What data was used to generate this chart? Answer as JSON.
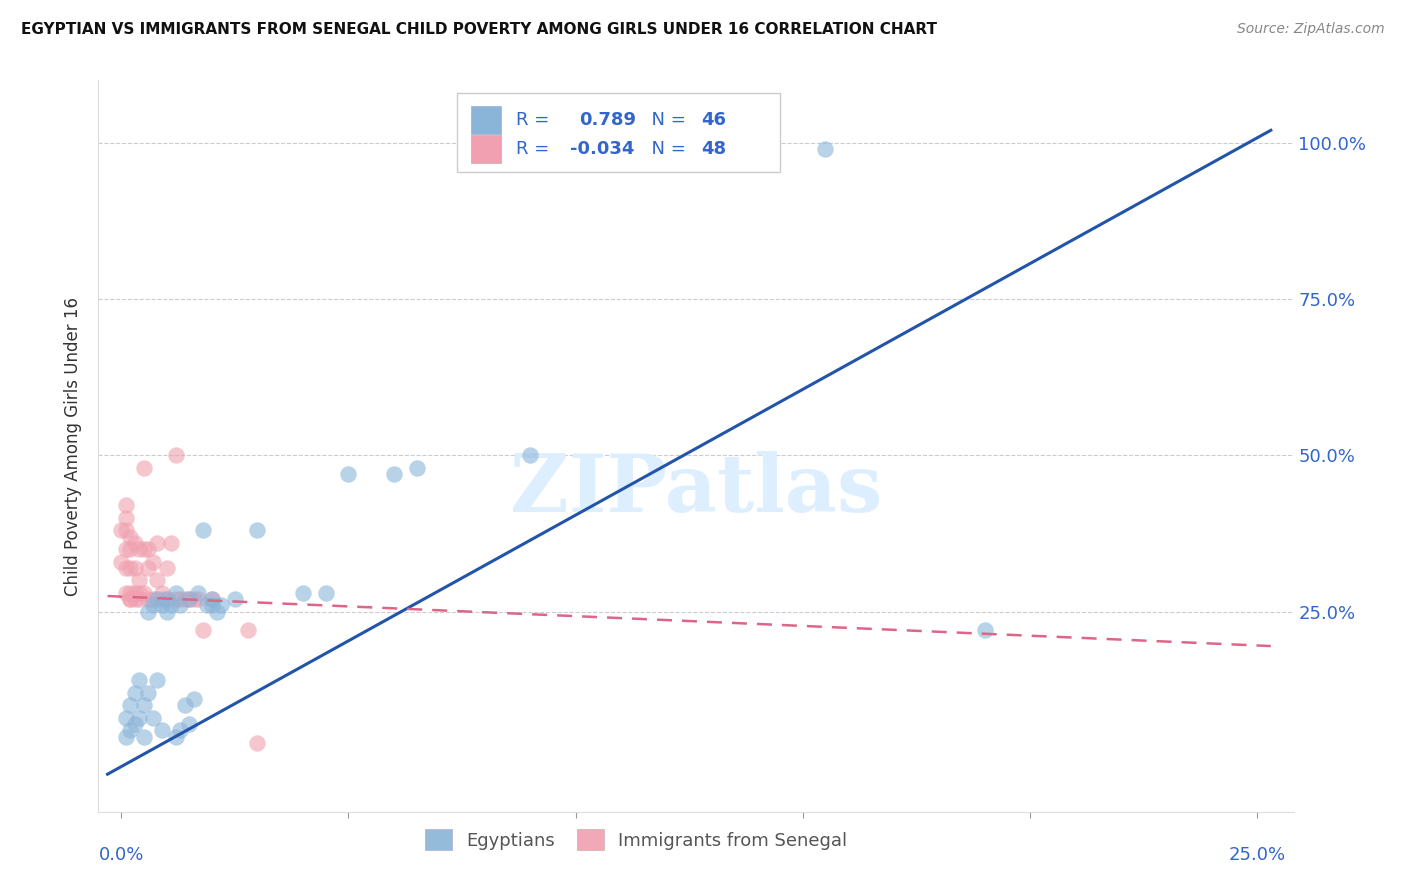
{
  "title": "EGYPTIAN VS IMMIGRANTS FROM SENEGAL CHILD POVERTY AMONG GIRLS UNDER 16 CORRELATION CHART",
  "source": "Source: ZipAtlas.com",
  "ylabel": "Child Poverty Among Girls Under 16",
  "yticklabels": [
    "100.0%",
    "75.0%",
    "50.0%",
    "25.0%"
  ],
  "ytick_positions": [
    1.0,
    0.75,
    0.5,
    0.25
  ],
  "legend_r_blue": "R =  0.789",
  "legend_n_blue": "N = 46",
  "legend_r_pink": "R = -0.034",
  "legend_n_pink": "N = 48",
  "blue_scatter": [
    [
      0.001,
      0.05
    ],
    [
      0.001,
      0.08
    ],
    [
      0.002,
      0.06
    ],
    [
      0.002,
      0.1
    ],
    [
      0.003,
      0.07
    ],
    [
      0.003,
      0.12
    ],
    [
      0.004,
      0.08
    ],
    [
      0.004,
      0.14
    ],
    [
      0.005,
      0.1
    ],
    [
      0.005,
      0.05
    ],
    [
      0.006,
      0.12
    ],
    [
      0.006,
      0.25
    ],
    [
      0.007,
      0.08
    ],
    [
      0.007,
      0.26
    ],
    [
      0.008,
      0.14
    ],
    [
      0.008,
      0.27
    ],
    [
      0.009,
      0.06
    ],
    [
      0.009,
      0.26
    ],
    [
      0.01,
      0.25
    ],
    [
      0.01,
      0.27
    ],
    [
      0.011,
      0.26
    ],
    [
      0.012,
      0.05
    ],
    [
      0.012,
      0.28
    ],
    [
      0.013,
      0.06
    ],
    [
      0.013,
      0.26
    ],
    [
      0.014,
      0.1
    ],
    [
      0.015,
      0.07
    ],
    [
      0.015,
      0.27
    ],
    [
      0.016,
      0.11
    ],
    [
      0.017,
      0.28
    ],
    [
      0.018,
      0.38
    ],
    [
      0.019,
      0.26
    ],
    [
      0.02,
      0.26
    ],
    [
      0.02,
      0.27
    ],
    [
      0.021,
      0.25
    ],
    [
      0.022,
      0.26
    ],
    [
      0.025,
      0.27
    ],
    [
      0.03,
      0.38
    ],
    [
      0.04,
      0.28
    ],
    [
      0.045,
      0.28
    ],
    [
      0.05,
      0.47
    ],
    [
      0.06,
      0.47
    ],
    [
      0.065,
      0.48
    ],
    [
      0.09,
      0.5
    ],
    [
      0.155,
      0.99
    ],
    [
      0.19,
      0.22
    ]
  ],
  "pink_scatter": [
    [
      0.0,
      0.38
    ],
    [
      0.0,
      0.33
    ],
    [
      0.001,
      0.28
    ],
    [
      0.001,
      0.32
    ],
    [
      0.001,
      0.35
    ],
    [
      0.001,
      0.38
    ],
    [
      0.001,
      0.4
    ],
    [
      0.001,
      0.42
    ],
    [
      0.002,
      0.27
    ],
    [
      0.002,
      0.32
    ],
    [
      0.002,
      0.35
    ],
    [
      0.002,
      0.37
    ],
    [
      0.002,
      0.27
    ],
    [
      0.002,
      0.28
    ],
    [
      0.003,
      0.28
    ],
    [
      0.003,
      0.32
    ],
    [
      0.003,
      0.36
    ],
    [
      0.003,
      0.27
    ],
    [
      0.004,
      0.27
    ],
    [
      0.004,
      0.3
    ],
    [
      0.004,
      0.35
    ],
    [
      0.004,
      0.28
    ],
    [
      0.005,
      0.28
    ],
    [
      0.005,
      0.35
    ],
    [
      0.005,
      0.48
    ],
    [
      0.006,
      0.27
    ],
    [
      0.006,
      0.32
    ],
    [
      0.006,
      0.35
    ],
    [
      0.007,
      0.27
    ],
    [
      0.007,
      0.33
    ],
    [
      0.008,
      0.3
    ],
    [
      0.008,
      0.36
    ],
    [
      0.009,
      0.28
    ],
    [
      0.009,
      0.27
    ],
    [
      0.01,
      0.32
    ],
    [
      0.01,
      0.27
    ],
    [
      0.011,
      0.36
    ],
    [
      0.012,
      0.5
    ],
    [
      0.012,
      0.27
    ],
    [
      0.013,
      0.27
    ],
    [
      0.014,
      0.27
    ],
    [
      0.015,
      0.27
    ],
    [
      0.016,
      0.27
    ],
    [
      0.017,
      0.27
    ],
    [
      0.018,
      0.22
    ],
    [
      0.02,
      0.27
    ],
    [
      0.028,
      0.22
    ],
    [
      0.03,
      0.04
    ]
  ],
  "blue_line_x": [
    -0.003,
    0.253
  ],
  "blue_line_y": [
    -0.01,
    1.02
  ],
  "pink_line_x": [
    -0.003,
    0.253
  ],
  "pink_line_y": [
    0.275,
    0.195
  ],
  "blue_scatter_color": "#8ab4d8",
  "pink_scatter_color": "#f0a0b0",
  "blue_line_color": "#2255aa",
  "pink_line_color": "#dd6688",
  "legend_text_color": "#3366cc",
  "watermark_color": "#ddeeff",
  "background_color": "#ffffff",
  "grid_color": "#cccccc",
  "xlim": [
    -0.005,
    0.258
  ],
  "ylim": [
    -0.07,
    1.1
  ]
}
